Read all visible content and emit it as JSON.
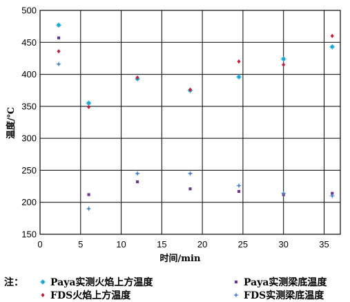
{
  "chart_data": {
    "type": "scatter",
    "title": "",
    "xlabel": "时间/min",
    "ylabel": "温度/℃",
    "xlim": [
      0,
      37
    ],
    "ylim": [
      150,
      500
    ],
    "xticks": [
      0,
      5,
      10,
      15,
      20,
      25,
      30,
      35
    ],
    "yticks": [
      150,
      200,
      250,
      300,
      350,
      400,
      450,
      500
    ],
    "grid": true,
    "legend_prefix": "注：",
    "legend_placement": "bottom",
    "series": [
      {
        "name": "Paya实测火焰上方温度",
        "color": "#1aa6d6",
        "marker": "asterisk",
        "x": [
          2.3,
          6,
          12,
          18.5,
          24.5,
          30,
          36
        ],
        "y": [
          477,
          355,
          393,
          375,
          396,
          424,
          443
        ]
      },
      {
        "name": "Paya实测梁底温度",
        "color": "#6b3590",
        "marker": "square",
        "x": [
          2.3,
          6,
          12,
          18.5,
          24.5,
          30,
          36
        ],
        "y": [
          457,
          212,
          232,
          221,
          217,
          212,
          214
        ]
      },
      {
        "name": "FDS火焰上方温度",
        "color": "#c0203c",
        "marker": "diamond",
        "x": [
          2.3,
          6,
          12,
          18.5,
          24.5,
          30,
          36
        ],
        "y": [
          436,
          349,
          395,
          376,
          420,
          415,
          460
        ]
      },
      {
        "name": "FDS实测梁底温度",
        "color": "#4a82c8",
        "marker": "star",
        "x": [
          2.3,
          6,
          12,
          18.5,
          24.5,
          30,
          36
        ],
        "y": [
          416,
          190,
          245,
          245,
          226,
          214,
          210
        ]
      }
    ]
  }
}
